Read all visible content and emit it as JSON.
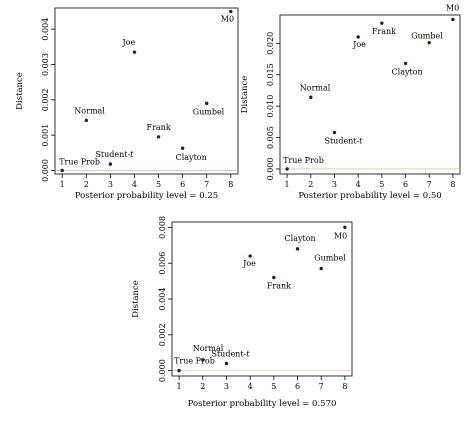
{
  "chart_data": [
    {
      "type": "scatter",
      "xlabel": "Posterior probability level = 0.25",
      "ylabel": "Distance",
      "xlim": [
        0.7,
        8.3
      ],
      "ylim": [
        -0.0001,
        0.0046
      ],
      "xticks": [
        "1",
        "2",
        "3",
        "4",
        "5",
        "6",
        "7",
        "8"
      ],
      "yticks": [
        0,
        0.001,
        0.002,
        0.003,
        0.004
      ],
      "ytick_labels": [
        "0.000",
        "0.001",
        "0.002",
        "0.003",
        "0.004"
      ],
      "points": [
        {
          "label": "True Prob",
          "x": 1,
          "y": 0.0
        },
        {
          "label": "Normal",
          "x": 2,
          "y": 0.00142
        },
        {
          "label": "Student-t",
          "x": 3,
          "y": 0.00018
        },
        {
          "label": "Joe",
          "x": 4,
          "y": 0.00335
        },
        {
          "label": "Frank",
          "x": 5,
          "y": 0.00095
        },
        {
          "label": "Clayton",
          "x": 6,
          "y": 0.00063
        },
        {
          "label": "Gumbel",
          "x": 7,
          "y": 0.0019
        },
        {
          "label": "M0",
          "x": 8,
          "y": 0.0045
        }
      ]
    },
    {
      "type": "scatter",
      "xlabel": "Posterior probability level = 0.50",
      "ylabel": "Distance",
      "xlim": [
        0.7,
        8.3
      ],
      "ylim": [
        -0.0008,
        0.0245
      ],
      "xticks": [
        "1",
        "2",
        "3",
        "4",
        "5",
        "6",
        "7",
        "8"
      ],
      "yticks": [
        0,
        0.005,
        0.01,
        0.015,
        0.02
      ],
      "ytick_labels": [
        "0.000",
        "0.005",
        "0.010",
        "0.015",
        "0.020"
      ],
      "points": [
        {
          "label": "True Prob",
          "x": 1,
          "y": 0.0
        },
        {
          "label": "Normal",
          "x": 2,
          "y": 0.0114
        },
        {
          "label": "Student-t",
          "x": 3,
          "y": 0.0058
        },
        {
          "label": "Joe",
          "x": 4,
          "y": 0.021
        },
        {
          "label": "Frank",
          "x": 5,
          "y": 0.0232
        },
        {
          "label": "Clayton",
          "x": 6,
          "y": 0.0168
        },
        {
          "label": "Gumbel",
          "x": 7,
          "y": 0.0201
        },
        {
          "label": "M0",
          "x": 8,
          "y": 0.0238
        }
      ]
    },
    {
      "type": "scatter",
      "xlabel": "Posterior probability level = 0.570",
      "ylabel": "Distance",
      "xlim": [
        0.7,
        8.3
      ],
      "ylim": [
        -0.0003,
        0.0083
      ],
      "xticks": [
        "1",
        "2",
        "3",
        "4",
        "5",
        "6",
        "7",
        "8"
      ],
      "yticks": [
        0,
        0.002,
        0.004,
        0.006,
        0.008
      ],
      "ytick_labels": [
        "0.000",
        "0.002",
        "0.004",
        "0.006",
        "0.008"
      ],
      "points": [
        {
          "label": "True Prob",
          "x": 1,
          "y": 0.0
        },
        {
          "label": "Normal",
          "x": 2,
          "y": 0.0006
        },
        {
          "label": "Student-t",
          "x": 3,
          "y": 0.0004
        },
        {
          "label": "Joe",
          "x": 4,
          "y": 0.0064
        },
        {
          "label": "Frank",
          "x": 5,
          "y": 0.0052
        },
        {
          "label": "Clayton",
          "x": 6,
          "y": 0.0068
        },
        {
          "label": "Gumbel",
          "x": 7,
          "y": 0.0057
        },
        {
          "label": "M0",
          "x": 8,
          "y": 0.008
        }
      ]
    }
  ],
  "colors": {
    "point": "#1a1a66",
    "reference_line": "#e8a070"
  }
}
